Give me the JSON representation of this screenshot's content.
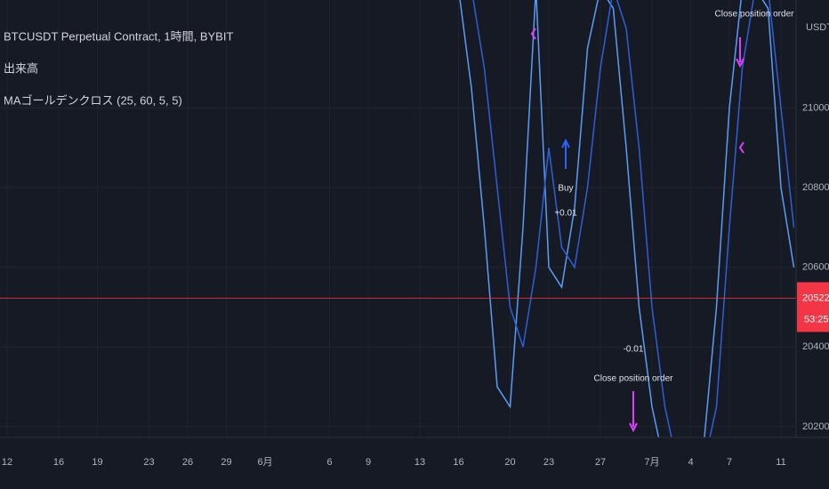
{
  "chart_data": {
    "type": "line",
    "title": "BTCUSDT Perpetual Contract, 1時間, BYBIT",
    "indicators": [
      "出来高",
      "MAゴールデンクロス (25, 60, 5, 5)"
    ],
    "y_unit": "USDT",
    "categories": [
      "12",
      null,
      null,
      null,
      "16",
      null,
      null,
      "19",
      null,
      null,
      null,
      "23",
      null,
      null,
      "26",
      null,
      null,
      "29",
      null,
      null,
      "6月",
      null,
      null,
      null,
      null,
      "6",
      null,
      null,
      "9",
      null,
      null,
      null,
      "13",
      null,
      null,
      "16",
      null,
      null,
      null,
      "20",
      null,
      null,
      "23",
      null,
      null,
      null,
      "27",
      null,
      null,
      null,
      "7月",
      null,
      null,
      "4",
      null,
      null,
      "7",
      null,
      null,
      null,
      "11",
      null
    ],
    "series": [
      {
        "color": "#5b9cf6",
        "values": [
          null,
          null,
          null,
          null,
          null,
          null,
          null,
          null,
          null,
          null,
          null,
          null,
          null,
          null,
          null,
          null,
          null,
          null,
          null,
          null,
          null,
          null,
          null,
          null,
          null,
          null,
          null,
          null,
          null,
          null,
          null,
          null,
          null,
          null,
          null,
          21300,
          21050,
          20700,
          20300,
          20250,
          20700,
          21300,
          20600,
          20550,
          20750,
          21150,
          21300,
          21250,
          20900,
          20500,
          20250,
          20100,
          20100,
          20100,
          20150,
          20500,
          21000,
          21300,
          21300,
          21250,
          20800,
          20600
        ]
      },
      {
        "color": "#2f5fd6",
        "values": [
          null,
          null,
          null,
          null,
          null,
          null,
          null,
          null,
          null,
          null,
          null,
          null,
          null,
          null,
          null,
          null,
          null,
          null,
          null,
          null,
          null,
          null,
          null,
          null,
          null,
          null,
          null,
          null,
          null,
          null,
          null,
          null,
          null,
          null,
          null,
          21350,
          21300,
          21100,
          20800,
          20500,
          20400,
          20600,
          20900,
          20650,
          20600,
          20800,
          21100,
          21300,
          21200,
          20900,
          20500,
          20250,
          20100,
          20100,
          20100,
          20250,
          20700,
          21100,
          21300,
          21300,
          21000,
          20700
        ]
      }
    ],
    "ylim": [
      20173,
      21271
    ],
    "yticks": [
      {
        "value": 21000,
        "label": "21000.0"
      },
      {
        "value": 20800,
        "label": "20800.0"
      },
      {
        "value": 20600,
        "label": "20600.0"
      },
      {
        "value": 20400,
        "label": "20400.0"
      },
      {
        "value": 20200,
        "label": "20200.0"
      }
    ],
    "grid": true,
    "last_price": 20522.5,
    "last_price_color": "#f23645",
    "countdown": "53:25",
    "annotations": [
      "Close position order",
      "Buy",
      "+0.01",
      "-0.01",
      "Close position order"
    ]
  }
}
